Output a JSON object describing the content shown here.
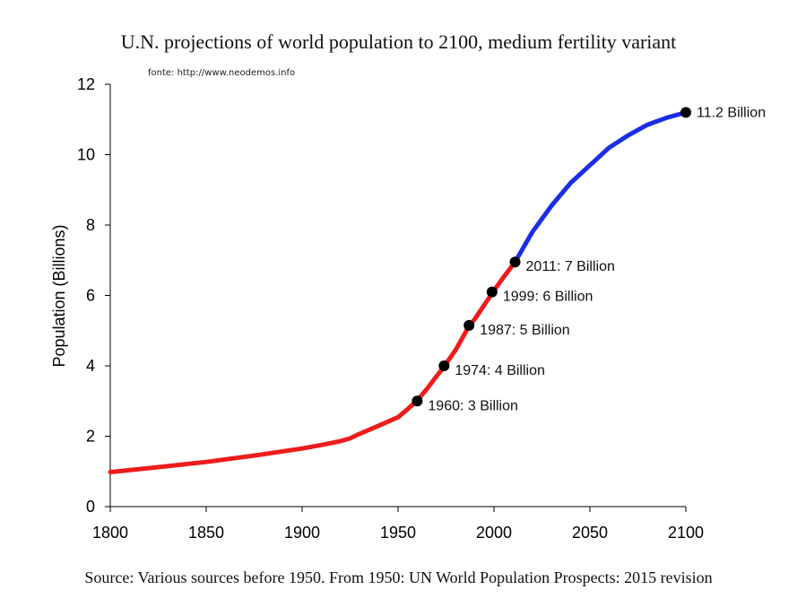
{
  "chart_data": {
    "type": "line",
    "title": "U.N. projections of world population to 2100, medium fertility variant",
    "source_note": "fonte: http://www.neodemos.info",
    "footer": "Source: Various sources before 1950. From 1950: UN World Population Prospects: 2015 revision",
    "xlabel": "",
    "ylabel": "Population (Billions)",
    "xlim": [
      1800,
      2100
    ],
    "ylim": [
      0,
      12
    ],
    "xticks": [
      1800,
      1850,
      1900,
      1950,
      2000,
      2050,
      2100
    ],
    "yticks": [
      0,
      2,
      4,
      6,
      8,
      10,
      12
    ],
    "grid": false,
    "series": [
      {
        "color": "#ee1c1c",
        "x": [
          1800,
          1825,
          1850,
          1875,
          1900,
          1910,
          1920,
          1925,
          1930,
          1940,
          1950,
          1955,
          1960,
          1965,
          1970,
          1974,
          1980,
          1987,
          1990,
          1999,
          2005,
          2011
        ],
        "values": [
          0.98,
          1.12,
          1.27,
          1.45,
          1.65,
          1.75,
          1.86,
          1.94,
          2.07,
          2.3,
          2.54,
          2.77,
          3.02,
          3.34,
          3.7,
          3.98,
          4.45,
          5.13,
          5.33,
          6.06,
          6.52,
          6.95
        ]
      },
      {
        "color": "#1a2ee8",
        "x": [
          2011,
          2020,
          2030,
          2040,
          2050,
          2060,
          2070,
          2080,
          2090,
          2100
        ],
        "values": [
          6.95,
          7.8,
          8.55,
          9.2,
          9.7,
          10.2,
          10.55,
          10.85,
          11.05,
          11.2
        ]
      }
    ],
    "points": [
      {
        "x": 1960,
        "y": 3.0,
        "label": "1960: 3 Billion"
      },
      {
        "x": 1974,
        "y": 4.0,
        "label": "1974: 4 Billion"
      },
      {
        "x": 1987,
        "y": 5.15,
        "label": "1987: 5 Billion"
      },
      {
        "x": 1999,
        "y": 6.1,
        "label": "1999: 6 Billion"
      },
      {
        "x": 2011,
        "y": 6.95,
        "label": "2011: 7 Billion"
      },
      {
        "x": 2100,
        "y": 11.2,
        "label": "11.2 Billion"
      }
    ]
  }
}
